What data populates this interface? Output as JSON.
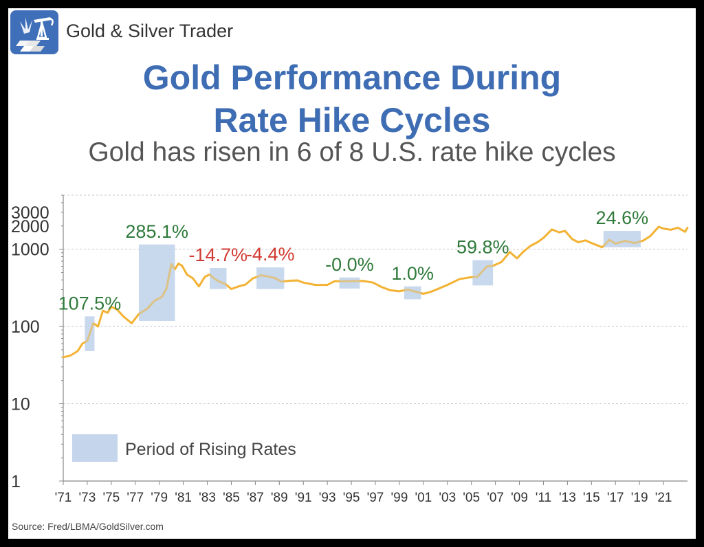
{
  "brand": {
    "name": "Gold & Silver Trader",
    "logo_icon": "gold-bars-oil-pump-icon"
  },
  "title_line1": "Gold Performance During",
  "title_line2": "Rate Hike Cycles",
  "subtitle": "Gold has risen in 6 of 8 U.S. rate hike cycles",
  "source": "Source: Fred/LBMA/GoldSilver.com",
  "colors": {
    "title": "#3f6db4",
    "gold": "#f3b233",
    "rising": "#c4d5ec",
    "positive": "#2f7a3a",
    "negative": "#d23a33"
  },
  "chart_data": {
    "type": "line",
    "y_scale": "log",
    "ylim": [
      1,
      5000
    ],
    "xlim": [
      1971,
      2023
    ],
    "grid": true,
    "y_ticks": [
      {
        "value": 1,
        "label": "1"
      },
      {
        "value": 10,
        "label": "10"
      },
      {
        "value": 100,
        "label": "100"
      },
      {
        "value": 1000,
        "label": "1000"
      },
      {
        "value": 2000,
        "label": "2000"
      },
      {
        "value": 3000,
        "label": "3000"
      }
    ],
    "x_ticks": [
      "'71",
      "'73",
      "'75",
      "'77",
      "'79",
      "'81",
      "'83",
      "'85",
      "'87",
      "'89",
      "'91",
      "'93",
      "'95",
      "'97",
      "'99",
      "'01",
      "'03",
      "'05",
      "'07",
      "'09",
      "'11",
      "'13",
      "'15",
      "'17",
      "'19",
      "'21"
    ],
    "legend": {
      "label": "Period of Rising Rates",
      "position": "bottom-left"
    },
    "series": [
      {
        "values": [
          [
            1971.0,
            40
          ],
          [
            1971.6,
            42
          ],
          [
            1972.2,
            48
          ],
          [
            1972.6,
            60
          ],
          [
            1973.0,
            65
          ],
          [
            1973.5,
            110
          ],
          [
            1973.9,
            100
          ],
          [
            1974.3,
            160
          ],
          [
            1974.7,
            150
          ],
          [
            1975.0,
            180
          ],
          [
            1975.5,
            165
          ],
          [
            1976.0,
            135
          ],
          [
            1976.7,
            110
          ],
          [
            1977.3,
            145
          ],
          [
            1978.0,
            170
          ],
          [
            1978.6,
            215
          ],
          [
            1979.2,
            240
          ],
          [
            1979.6,
            310
          ],
          [
            1980.0,
            640
          ],
          [
            1980.3,
            550
          ],
          [
            1980.6,
            650
          ],
          [
            1980.9,
            610
          ],
          [
            1981.3,
            470
          ],
          [
            1981.8,
            420
          ],
          [
            1982.3,
            330
          ],
          [
            1982.8,
            440
          ],
          [
            1983.2,
            470
          ],
          [
            1983.6,
            415
          ],
          [
            1984.0,
            380
          ],
          [
            1984.5,
            355
          ],
          [
            1985.0,
            305
          ],
          [
            1985.6,
            330
          ],
          [
            1986.2,
            350
          ],
          [
            1986.8,
            420
          ],
          [
            1987.5,
            460
          ],
          [
            1988.0,
            445
          ],
          [
            1988.6,
            425
          ],
          [
            1989.2,
            380
          ],
          [
            1989.8,
            390
          ],
          [
            1990.5,
            395
          ],
          [
            1991.0,
            370
          ],
          [
            1992.0,
            345
          ],
          [
            1993.0,
            345
          ],
          [
            1993.6,
            385
          ],
          [
            1994.0,
            385
          ],
          [
            1995.0,
            385
          ],
          [
            1996.0,
            388
          ],
          [
            1996.8,
            370
          ],
          [
            1997.5,
            325
          ],
          [
            1998.2,
            295
          ],
          [
            1999.0,
            285
          ],
          [
            1999.7,
            300
          ],
          [
            2000.5,
            278
          ],
          [
            2001.0,
            265
          ],
          [
            2001.6,
            280
          ],
          [
            2002.3,
            310
          ],
          [
            2003.0,
            345
          ],
          [
            2004.0,
            410
          ],
          [
            2004.8,
            430
          ],
          [
            2005.5,
            440
          ],
          [
            2006.3,
            600
          ],
          [
            2006.8,
            610
          ],
          [
            2007.5,
            680
          ],
          [
            2008.2,
            920
          ],
          [
            2008.8,
            760
          ],
          [
            2009.3,
            920
          ],
          [
            2009.9,
            1100
          ],
          [
            2010.5,
            1230
          ],
          [
            2011.0,
            1400
          ],
          [
            2011.7,
            1800
          ],
          [
            2012.3,
            1650
          ],
          [
            2012.8,
            1720
          ],
          [
            2013.4,
            1350
          ],
          [
            2013.9,
            1230
          ],
          [
            2014.5,
            1300
          ],
          [
            2015.0,
            1200
          ],
          [
            2015.9,
            1060
          ],
          [
            2016.5,
            1320
          ],
          [
            2017.0,
            1180
          ],
          [
            2017.8,
            1280
          ],
          [
            2018.6,
            1200
          ],
          [
            2019.3,
            1290
          ],
          [
            2019.9,
            1480
          ],
          [
            2020.6,
            1950
          ],
          [
            2021.0,
            1850
          ],
          [
            2021.6,
            1780
          ],
          [
            2022.2,
            1900
          ],
          [
            2022.8,
            1680
          ],
          [
            2023.0,
            1900
          ]
        ]
      }
    ],
    "rising_periods": [
      {
        "start": 1972.8,
        "end": 1973.6,
        "low": 48,
        "high": 135,
        "change": "107.5%",
        "positive": true
      },
      {
        "start": 1977.3,
        "end": 1980.3,
        "low": 118,
        "high": 1150,
        "change": "285.1%",
        "positive": true
      },
      {
        "start": 1983.2,
        "end": 1984.6,
        "low": 305,
        "high": 570,
        "change": "-14.7%",
        "positive": false
      },
      {
        "start": 1987.1,
        "end": 1989.4,
        "low": 305,
        "high": 580,
        "change": "-4.4%",
        "positive": false
      },
      {
        "start": 1994.0,
        "end": 1995.7,
        "low": 310,
        "high": 430,
        "change": "-0.0%",
        "positive": true
      },
      {
        "start": 1999.4,
        "end": 2000.8,
        "low": 225,
        "high": 330,
        "change": "1.0%",
        "positive": true
      },
      {
        "start": 2005.1,
        "end": 2006.8,
        "low": 340,
        "high": 720,
        "change": "59.8%",
        "positive": true
      },
      {
        "start": 2016.0,
        "end": 2019.1,
        "low": 1060,
        "high": 1720,
        "change": "24.6%",
        "positive": true
      }
    ]
  }
}
